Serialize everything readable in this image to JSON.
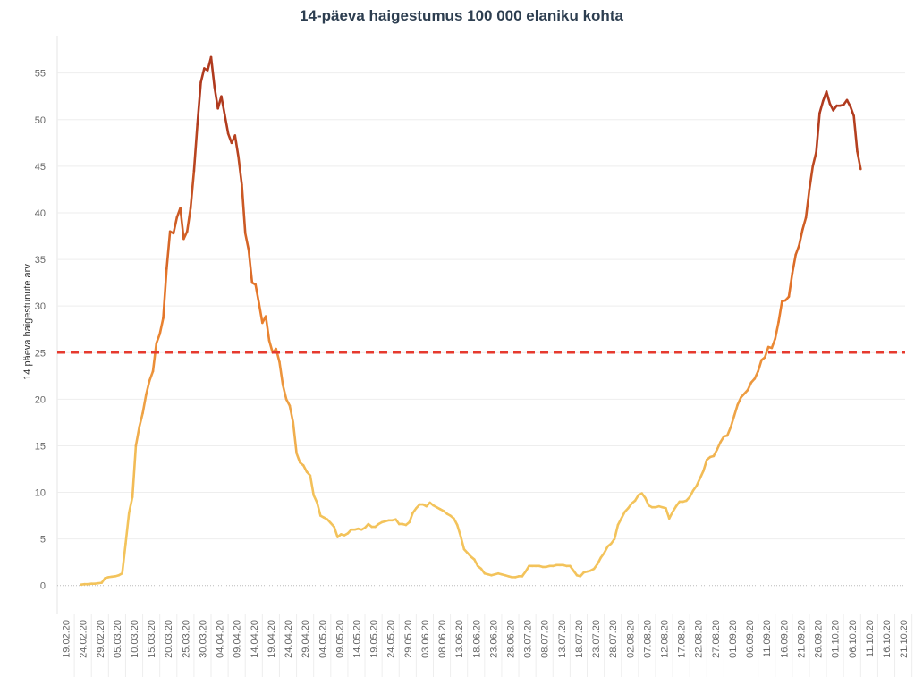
{
  "chart_data": {
    "type": "line",
    "title": "14-päeva haigestumus 100 000 elaniku kohta",
    "xlabel": "",
    "ylabel": "14 päeva haigestunute arv",
    "ylim": [
      -3,
      59
    ],
    "yticks": [
      0,
      5,
      10,
      15,
      20,
      25,
      30,
      35,
      40,
      45,
      50,
      55
    ],
    "x_start": "2020-02-19",
    "x_end": "2020-10-24",
    "xtick_labels": [
      "19.02.20",
      "24.02.20",
      "29.02.20",
      "05.03.20",
      "10.03.20",
      "15.03.20",
      "20.03.20",
      "25.03.20",
      "30.03.20",
      "04.04.20",
      "09.04.20",
      "14.04.20",
      "19.04.20",
      "24.04.20",
      "29.04.20",
      "04.05.20",
      "09.05.20",
      "14.05.20",
      "19.05.20",
      "24.05.20",
      "29.05.20",
      "03.06.20",
      "08.06.20",
      "13.06.20",
      "18.06.20",
      "23.06.20",
      "28.06.20",
      "03.07.20",
      "08.07.20",
      "13.07.20",
      "18.07.20",
      "23.07.20",
      "28.07.20",
      "02.08.20",
      "07.08.20",
      "12.08.20",
      "17.08.20",
      "22.08.20",
      "27.08.20",
      "01.09.20",
      "06.09.20",
      "11.09.20",
      "16.09.20",
      "21.09.20",
      "26.09.20",
      "01.10.20",
      "06.10.20",
      "11.10.20",
      "16.10.20",
      "21.10.20"
    ],
    "threshold": {
      "value": 25,
      "color": "#e63a2e",
      "style": "dashed"
    },
    "series": [
      {
        "name": "14-päeva haigestumus",
        "color_low": "#f3c35b",
        "color_mid": "#e87a2b",
        "color_high": "#b03a1e",
        "start_date": "2020-02-26",
        "values": [
          0.1,
          0.15,
          0.15,
          0.2,
          0.2,
          0.25,
          0.3,
          0.8,
          0.9,
          0.95,
          1.0,
          1.1,
          1.3,
          4.5,
          7.8,
          9.5,
          15.0,
          17.0,
          18.5,
          20.5,
          22.0,
          23.0,
          26.0,
          27.0,
          28.7,
          34.0,
          38.0,
          37.8,
          39.5,
          40.5,
          37.2,
          38.0,
          40.5,
          44.5,
          49.5,
          54.0,
          55.5,
          55.3,
          56.7,
          53.5,
          51.2,
          52.5,
          50.5,
          48.5,
          47.5,
          48.3,
          46.0,
          43.0,
          37.8,
          36.0,
          32.5,
          32.3,
          30.3,
          28.2,
          28.9,
          26.3,
          25.0,
          25.4,
          24.0,
          21.5,
          20.0,
          19.3,
          17.5,
          14.2,
          13.2,
          12.9,
          12.2,
          11.8,
          9.7,
          8.9,
          7.5,
          7.3,
          7.1,
          6.7,
          6.3,
          5.2,
          5.5,
          5.4,
          5.6,
          6.0,
          6.0,
          6.1,
          6.0,
          6.2,
          6.6,
          6.3,
          6.3,
          6.6,
          6.8,
          6.9,
          7.0,
          7.0,
          7.1,
          6.6,
          6.6,
          6.5,
          6.8,
          7.8,
          8.3,
          8.7,
          8.7,
          8.5,
          8.9,
          8.6,
          8.4,
          8.2,
          8.0,
          7.7,
          7.5,
          7.2,
          6.5,
          5.3,
          3.9,
          3.5,
          3.1,
          2.8,
          2.1,
          1.8,
          1.3,
          1.2,
          1.1,
          1.2,
          1.3,
          1.2,
          1.1,
          1.0,
          0.9,
          0.9,
          1.0,
          1.0,
          1.5,
          2.1,
          2.1,
          2.1,
          2.1,
          2.0,
          2.0,
          2.1,
          2.1,
          2.2,
          2.2,
          2.2,
          2.1,
          2.1,
          1.6,
          1.1,
          1.0,
          1.4,
          1.5,
          1.6,
          1.8,
          2.3,
          3.0,
          3.5,
          4.2,
          4.5,
          5.0,
          6.5,
          7.2,
          7.9,
          8.3,
          8.8,
          9.1,
          9.7,
          9.9,
          9.4,
          8.6,
          8.4,
          8.4,
          8.5,
          8.4,
          8.3,
          7.2,
          7.9,
          8.5,
          9.0,
          9.0,
          9.1,
          9.5,
          10.2,
          10.7,
          11.5,
          12.3,
          13.5,
          13.8,
          13.9,
          14.6,
          15.4,
          16.0,
          16.1,
          17.0,
          18.2,
          19.4,
          20.2,
          20.6,
          21.0,
          21.8,
          22.2,
          23.0,
          24.2,
          24.5,
          25.6,
          25.5,
          26.5,
          28.3,
          30.5,
          30.6,
          31.0,
          33.5,
          35.5,
          36.5,
          38.2,
          39.5,
          42.5,
          45.0,
          46.5,
          50.7,
          52.0,
          53.0,
          51.7,
          51.0,
          51.5,
          51.5,
          51.6,
          52.1,
          51.4,
          50.4,
          46.6,
          44.7
        ]
      }
    ]
  }
}
